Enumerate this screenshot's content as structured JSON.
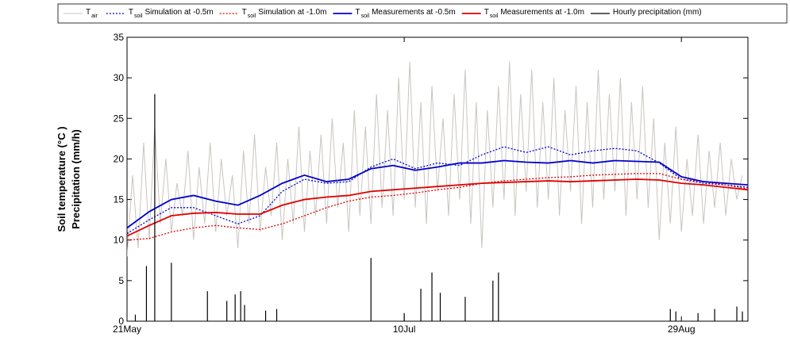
{
  "chart_data": {
    "type": "line",
    "y_label_lines": [
      "Soil temperature (°C )",
      "Precipitation (mm/h)"
    ],
    "xlim": [
      0,
      112
    ],
    "xticks": [
      {
        "value": 0,
        "label": "21May"
      },
      {
        "value": 50,
        "label": "10Jul"
      },
      {
        "value": 100,
        "label": "29Aug"
      }
    ],
    "ylim": [
      0,
      35
    ],
    "yticks": [
      0,
      5,
      10,
      15,
      20,
      25,
      30,
      35
    ],
    "grid": false,
    "legend": "top",
    "series": [
      {
        "symbol": "T",
        "subscript": "air",
        "name": "",
        "color": "#c9c5c0",
        "dash": false,
        "width": 1,
        "x": [
          0,
          1,
          2,
          3,
          4,
          5,
          6,
          7,
          8,
          9,
          10,
          11,
          12,
          13,
          14,
          15,
          16,
          17,
          18,
          19,
          20,
          21,
          22,
          23,
          24,
          25,
          26,
          27,
          28,
          29,
          30,
          31,
          32,
          33,
          34,
          35,
          36,
          37,
          38,
          39,
          40,
          41,
          42,
          43,
          44,
          45,
          46,
          47,
          48,
          49,
          50,
          51,
          52,
          53,
          54,
          55,
          56,
          57,
          58,
          59,
          60,
          61,
          62,
          63,
          64,
          65,
          66,
          67,
          68,
          69,
          70,
          71,
          72,
          73,
          74,
          75,
          76,
          77,
          78,
          79,
          80,
          81,
          82,
          83,
          84,
          85,
          86,
          87,
          88,
          89,
          90,
          91,
          92,
          93,
          94,
          95,
          96,
          97,
          98,
          99,
          100,
          101,
          102,
          103,
          104,
          105,
          106,
          107,
          108,
          109,
          110,
          111
        ],
        "values": [
          8,
          18,
          9,
          22,
          10,
          24,
          12,
          20,
          11,
          17,
          13,
          21,
          10,
          19,
          12,
          22,
          11,
          20,
          13,
          18,
          9,
          21,
          12,
          23,
          11,
          19,
          13,
          22,
          10,
          20,
          12,
          24,
          11,
          21,
          13,
          23,
          12,
          25,
          14,
          22,
          11,
          26,
          13,
          24,
          12,
          28,
          14,
          26,
          13,
          30,
          15,
          32,
          14,
          27,
          12,
          29,
          16,
          25,
          13,
          28,
          15,
          31,
          12,
          27,
          9,
          26,
          14,
          29,
          15,
          32,
          13,
          28,
          16,
          31,
          14,
          27,
          15,
          30,
          13,
          26,
          16,
          29,
          12,
          27,
          14,
          31,
          15,
          28,
          16,
          30,
          13,
          27,
          15,
          29,
          14,
          25,
          10,
          22,
          12,
          24,
          11,
          20,
          13,
          23,
          12,
          21,
          14,
          22,
          13,
          20,
          15,
          18
        ]
      },
      {
        "symbol": "T",
        "subscript": "soil",
        "name": "Simulation at -0.5m",
        "color": "#0000cc",
        "dash": true,
        "width": 1.3,
        "x": [
          0,
          4,
          8,
          12,
          16,
          20,
          24,
          28,
          32,
          36,
          40,
          44,
          48,
          52,
          56,
          60,
          64,
          68,
          72,
          76,
          80,
          84,
          88,
          92,
          96,
          100,
          104,
          108,
          112
        ],
        "values": [
          10.8,
          12.5,
          14,
          14,
          13,
          12,
          13,
          16,
          17.5,
          17,
          17.2,
          19,
          20,
          18.8,
          19.5,
          19.2,
          20.5,
          21.5,
          20.8,
          21.5,
          20.5,
          21,
          21.3,
          21,
          19.5,
          17.5,
          17,
          16.8,
          16.5
        ]
      },
      {
        "symbol": "T",
        "subscript": "soil",
        "name": "Simulation at -1.0m",
        "color": "#e00000",
        "dash": true,
        "width": 1.3,
        "x": [
          0,
          4,
          8,
          12,
          16,
          20,
          24,
          28,
          32,
          36,
          40,
          44,
          48,
          52,
          56,
          60,
          64,
          68,
          72,
          76,
          80,
          84,
          88,
          92,
          96,
          100,
          104,
          108,
          112
        ],
        "values": [
          10,
          10.2,
          11,
          11.5,
          11.8,
          11.5,
          11.3,
          12,
          13,
          14,
          14.8,
          15.3,
          15.5,
          15.8,
          16.2,
          16.5,
          17,
          17.3,
          17.5,
          17.7,
          17.8,
          18,
          18.1,
          18.2,
          18.2,
          17.5,
          17.2,
          16.8,
          16.3
        ]
      },
      {
        "symbol": "T",
        "subscript": "soil",
        "name": "Measurements at -0.5m",
        "color": "#0000cc",
        "dash": false,
        "width": 1.8,
        "x": [
          0,
          4,
          8,
          12,
          16,
          20,
          24,
          28,
          32,
          36,
          40,
          44,
          48,
          52,
          56,
          60,
          64,
          68,
          72,
          76,
          80,
          84,
          88,
          92,
          96,
          100,
          104,
          108,
          112
        ],
        "values": [
          11.5,
          13.5,
          15,
          15.5,
          14.8,
          14.3,
          15.5,
          17,
          18,
          17.2,
          17.5,
          18.8,
          19.2,
          18.6,
          19,
          19.5,
          19.5,
          19.8,
          19.6,
          19.5,
          19.8,
          19.5,
          19.8,
          19.7,
          19.6,
          17.8,
          17.2,
          17,
          16.8
        ]
      },
      {
        "symbol": "T",
        "subscript": "soil",
        "name": "Measurements at -1.0m",
        "color": "#e00000",
        "dash": false,
        "width": 1.8,
        "x": [
          0,
          4,
          8,
          12,
          16,
          20,
          24,
          28,
          32,
          36,
          40,
          44,
          48,
          52,
          56,
          60,
          64,
          68,
          72,
          76,
          80,
          84,
          88,
          92,
          96,
          100,
          104,
          108,
          112
        ],
        "values": [
          10.5,
          11.8,
          13,
          13.3,
          13.4,
          13.2,
          13.2,
          14.3,
          15,
          15.3,
          15.5,
          16,
          16.2,
          16.4,
          16.6,
          16.8,
          17,
          17.1,
          17.2,
          17.3,
          17.2,
          17.3,
          17.4,
          17.5,
          17.4,
          17,
          16.8,
          16.5,
          16.2
        ]
      },
      {
        "symbol": "",
        "subscript": "",
        "name": "Hourly precipitation (mm)",
        "color": "#000000",
        "dash": false,
        "width": 1.2,
        "type": "bar",
        "x": [
          1.5,
          3.5,
          5,
          8,
          14.5,
          18,
          19.5,
          20.5,
          21.2,
          25,
          27,
          44,
          50,
          53,
          55,
          56.5,
          61,
          66,
          67,
          98,
          99,
          103,
          106,
          110,
          111
        ],
        "values": [
          0.8,
          6.8,
          28,
          7.2,
          3.7,
          2.5,
          3.3,
          3.7,
          2,
          1.3,
          1.5,
          7.8,
          1,
          4,
          6,
          3.5,
          3,
          5,
          6,
          1.5,
          1.2,
          1,
          1.5,
          1.8,
          1.2
        ]
      }
    ]
  }
}
